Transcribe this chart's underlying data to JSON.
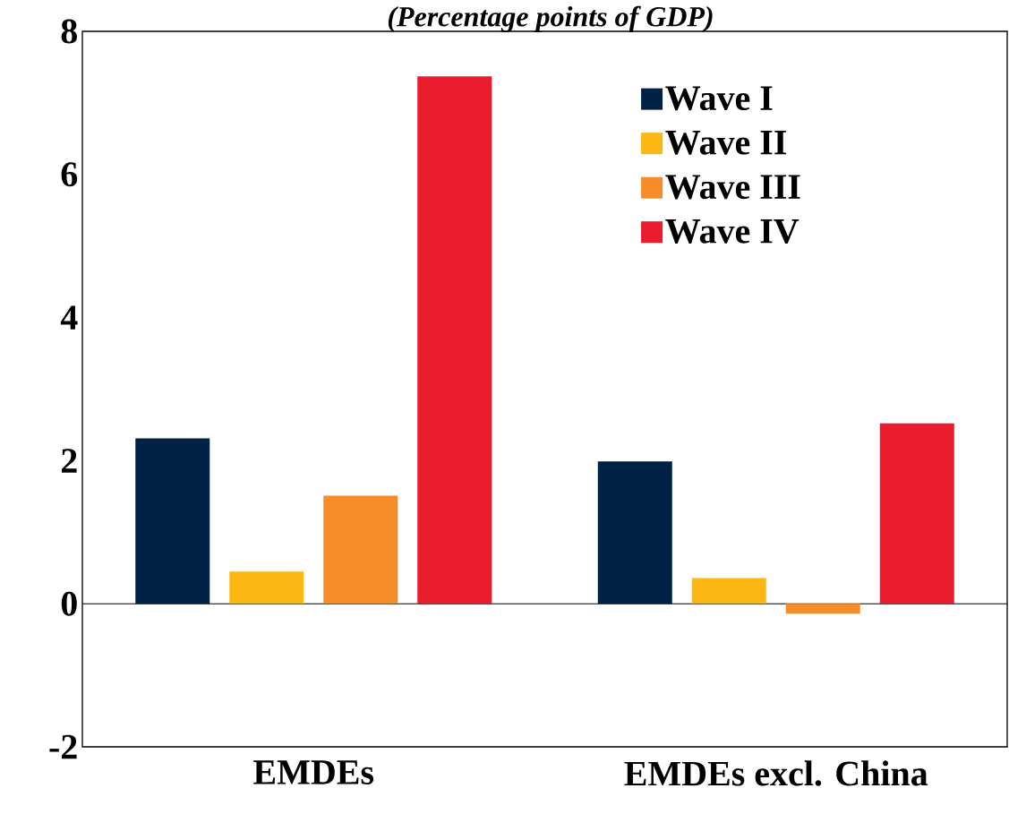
{
  "chart_data": {
    "type": "bar",
    "subtitle": "(Percentage points of GDP)",
    "categories": [
      "EMDEs",
      "EMDEs excl. China"
    ],
    "series": [
      {
        "name": "Wave I",
        "color": "#002345",
        "values": [
          2.31,
          1.99
        ]
      },
      {
        "name": "Wave II",
        "color": "#fdb714",
        "values": [
          0.45,
          0.36
        ]
      },
      {
        "name": "Wave III",
        "color": "#f78d28",
        "values": [
          1.51,
          -0.14
        ]
      },
      {
        "name": "Wave IV",
        "color": "#eb1c2d",
        "values": [
          7.37,
          2.52
        ]
      }
    ],
    "ylim": [
      -2,
      8
    ],
    "yticks": [
      -2,
      0,
      2,
      4,
      6,
      8
    ],
    "legend": "top right"
  }
}
